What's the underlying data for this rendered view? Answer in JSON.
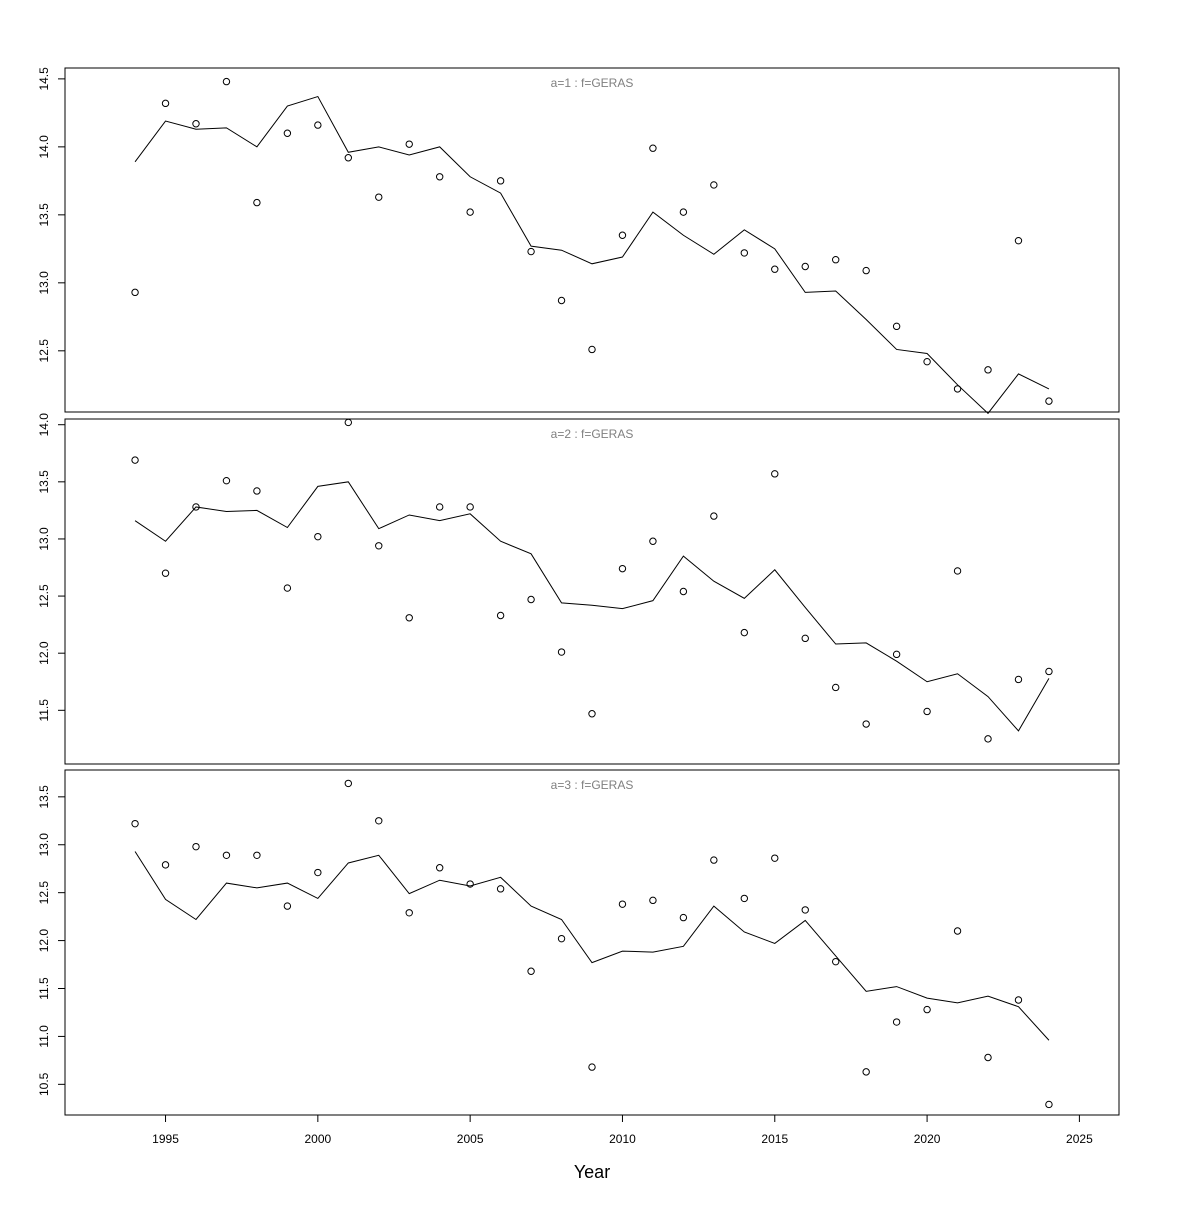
{
  "chart_data": {
    "type": "line",
    "xlabel": "Year",
    "xlim": [
      1991.7,
      2026.3
    ],
    "x_ticks": [
      1995,
      2000,
      2005,
      2010,
      2015,
      2020,
      2025
    ],
    "x": [
      1994,
      1995,
      1996,
      1997,
      1998,
      1999,
      2000,
      2001,
      2002,
      2003,
      2004,
      2005,
      2006,
      2007,
      2008,
      2009,
      2010,
      2011,
      2012,
      2013,
      2014,
      2015,
      2016,
      2017,
      2018,
      2019,
      2020,
      2021,
      2022,
      2023,
      2024
    ],
    "panels": [
      {
        "title": "a=1 : f=GERAS",
        "ylim": [
          12.05,
          14.58
        ],
        "y_ticks": [
          12.5,
          13.0,
          13.5,
          14.0,
          14.5
        ],
        "fitted": [
          13.89,
          14.19,
          14.13,
          14.14,
          14.0,
          14.3,
          14.37,
          13.96,
          14.0,
          13.94,
          14.0,
          13.78,
          13.66,
          13.27,
          13.24,
          13.14,
          13.19,
          13.52,
          13.35,
          13.21,
          13.39,
          13.25,
          12.93,
          12.94,
          12.73,
          12.51,
          12.48,
          12.25,
          12.04,
          12.33,
          12.22
        ],
        "observed": [
          12.93,
          14.32,
          14.17,
          14.48,
          13.59,
          14.1,
          14.16,
          13.92,
          13.63,
          14.02,
          13.78,
          13.52,
          13.75,
          13.23,
          12.87,
          12.51,
          13.35,
          13.99,
          13.52,
          13.72,
          13.22,
          13.1,
          13.12,
          13.17,
          13.09,
          12.68,
          12.42,
          12.22,
          12.36,
          13.31,
          12.13
        ]
      },
      {
        "title": "a=2 : f=GERAS",
        "ylim": [
          11.03,
          14.05
        ],
        "y_ticks": [
          11.5,
          12.0,
          12.5,
          13.0,
          13.5,
          14.0
        ],
        "fitted": [
          13.16,
          12.98,
          13.28,
          13.24,
          13.25,
          13.1,
          13.46,
          13.5,
          13.09,
          13.21,
          13.16,
          13.22,
          12.98,
          12.87,
          12.44,
          12.42,
          12.39,
          12.46,
          12.85,
          12.63,
          12.48,
          12.73,
          12.4,
          12.08,
          12.09,
          11.93,
          11.75,
          11.82,
          11.62,
          11.32,
          11.78
        ],
        "observed": [
          13.69,
          12.7,
          13.28,
          13.51,
          13.42,
          12.57,
          13.02,
          14.02,
          12.94,
          12.31,
          13.28,
          13.28,
          12.33,
          12.47,
          12.01,
          11.47,
          12.74,
          12.98,
          12.54,
          13.2,
          12.18,
          13.57,
          12.13,
          11.7,
          11.38,
          11.99,
          11.49,
          12.72,
          11.25,
          11.77,
          11.84
        ]
      },
      {
        "title": "a=3 : f=GERAS",
        "ylim": [
          10.18,
          13.78
        ],
        "y_ticks": [
          10.5,
          11.0,
          11.5,
          12.0,
          12.5,
          13.0,
          13.5
        ],
        "fitted": [
          12.93,
          12.43,
          12.22,
          12.6,
          12.55,
          12.6,
          12.44,
          12.81,
          12.89,
          12.49,
          12.63,
          12.57,
          12.66,
          12.36,
          12.22,
          11.77,
          11.89,
          11.88,
          11.94,
          12.36,
          12.09,
          11.97,
          12.21,
          11.84,
          11.47,
          11.52,
          11.4,
          11.35,
          11.42,
          11.31,
          10.96
        ],
        "observed": [
          13.22,
          12.79,
          12.98,
          12.89,
          12.89,
          12.36,
          12.71,
          13.64,
          13.25,
          12.29,
          12.76,
          12.59,
          12.54,
          11.68,
          12.02,
          10.68,
          12.38,
          12.42,
          12.24,
          12.84,
          12.44,
          12.86,
          12.32,
          11.78,
          10.63,
          11.15,
          11.28,
          12.1,
          10.78,
          11.38,
          10.29
        ]
      }
    ]
  }
}
